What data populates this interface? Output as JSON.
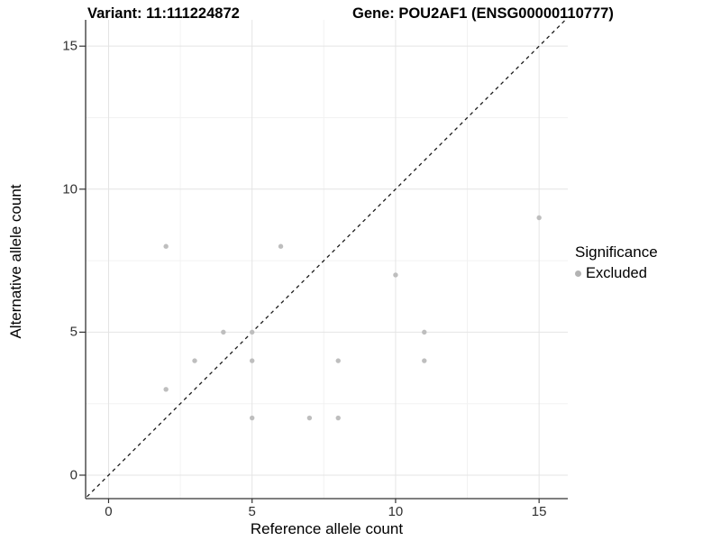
{
  "chart_data": {
    "type": "scatter",
    "titles": {
      "variant": "Variant: 11:111224872",
      "gene": "Gene: POU2AF1 (ENSG00000110777)"
    },
    "xlabel": "Reference allele count",
    "ylabel": "Alternative allele count",
    "xlim": [
      -0.8,
      16.0
    ],
    "ylim": [
      -0.82,
      15.92
    ],
    "ticks": {
      "x": [
        0,
        5,
        10,
        15
      ],
      "x_labels": [
        "0",
        "5",
        "10",
        "15"
      ],
      "y": [
        0,
        5,
        10,
        15
      ],
      "y_labels": [
        "0",
        "5",
        "10",
        "15"
      ],
      "x_minor": [
        2.5,
        7.5,
        12.5
      ],
      "y_minor": [
        2.5,
        7.5,
        12.5
      ]
    },
    "grid": "major-and-minor",
    "reference_line": {
      "type": "identity-diagonal",
      "style": "dashed",
      "color": "#1c1c1c"
    },
    "series": [
      {
        "name": "Excluded",
        "color": "#bebebe",
        "points": [
          [
            2,
            3
          ],
          [
            2,
            8
          ],
          [
            3,
            4
          ],
          [
            4,
            5
          ],
          [
            5,
            2
          ],
          [
            5,
            4
          ],
          [
            5,
            5
          ],
          [
            6,
            8
          ],
          [
            7,
            2
          ],
          [
            8,
            2
          ],
          [
            8,
            4
          ],
          [
            10,
            7
          ],
          [
            11,
            4
          ],
          [
            11,
            5
          ],
          [
            15,
            9
          ]
        ]
      }
    ],
    "legend": {
      "title": "Significance",
      "position": "right",
      "items": [
        {
          "label": "Excluded",
          "color": "#b3b3b3"
        }
      ]
    },
    "colors": {
      "grid_major": "#e4e4e4",
      "grid_minor": "#f2f2f2",
      "axis_line": "#333333",
      "tick_text": "#303030"
    }
  }
}
